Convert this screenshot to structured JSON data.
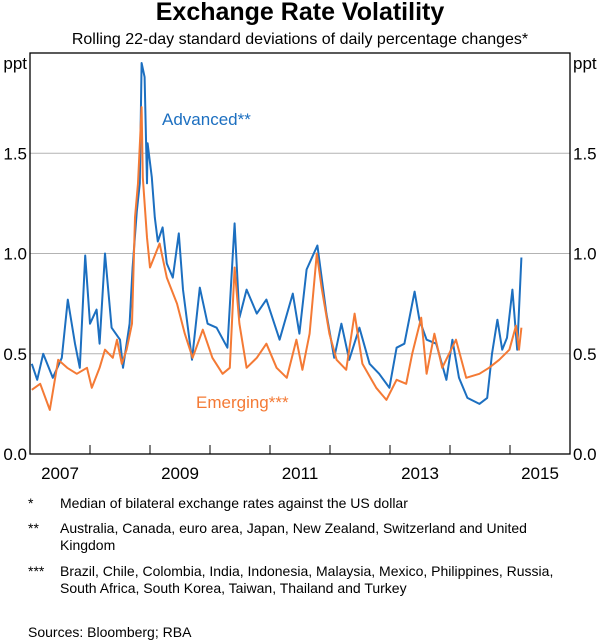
{
  "title": "Exchange Rate Volatility",
  "subtitle": "Rolling 22-day standard deviations of daily percentage changes*",
  "chart_data": {
    "type": "line",
    "title": "Exchange Rate Volatility",
    "subtitle": "Rolling 22-day standard deviations of daily percentage changes*",
    "ylabel_left": "ppt",
    "ylabel_right": "ppt",
    "ylim": [
      0,
      2.0
    ],
    "yticks": [
      0.0,
      0.5,
      1.0,
      1.5
    ],
    "ytick_labels": [
      "0.0",
      "0.5",
      "1.0",
      "1.5"
    ],
    "xlim": [
      2007,
      2016
    ],
    "xtick_labels": [
      "2007",
      "2009",
      "2011",
      "2013",
      "2015"
    ],
    "grid": "horizontal",
    "series": [
      {
        "name": "Advanced**",
        "color": "#1c6fc0",
        "points": [
          [
            2007.03,
            0.45
          ],
          [
            2007.12,
            0.37
          ],
          [
            2007.22,
            0.5
          ],
          [
            2007.38,
            0.38
          ],
          [
            2007.53,
            0.48
          ],
          [
            2007.63,
            0.77
          ],
          [
            2007.75,
            0.55
          ],
          [
            2007.83,
            0.43
          ],
          [
            2007.92,
            0.99
          ],
          [
            2008.0,
            0.65
          ],
          [
            2008.11,
            0.72
          ],
          [
            2008.16,
            0.55
          ],
          [
            2008.25,
            1.0
          ],
          [
            2008.36,
            0.63
          ],
          [
            2008.5,
            0.57
          ],
          [
            2008.55,
            0.43
          ],
          [
            2008.66,
            0.65
          ],
          [
            2008.71,
            0.93
          ],
          [
            2008.78,
            1.21
          ],
          [
            2008.83,
            1.35
          ],
          [
            2008.86,
            1.95
          ],
          [
            2008.91,
            1.88
          ],
          [
            2008.95,
            1.35
          ],
          [
            2008.96,
            1.55
          ],
          [
            2009.03,
            1.38
          ],
          [
            2009.08,
            1.18
          ],
          [
            2009.13,
            1.06
          ],
          [
            2009.21,
            1.13
          ],
          [
            2009.28,
            0.95
          ],
          [
            2009.38,
            0.88
          ],
          [
            2009.48,
            1.1
          ],
          [
            2009.55,
            0.82
          ],
          [
            2009.7,
            0.47
          ],
          [
            2009.83,
            0.83
          ],
          [
            2009.96,
            0.65
          ],
          [
            2010.11,
            0.63
          ],
          [
            2010.29,
            0.53
          ],
          [
            2010.41,
            1.15
          ],
          [
            2010.49,
            0.68
          ],
          [
            2010.61,
            0.82
          ],
          [
            2010.78,
            0.7
          ],
          [
            2010.94,
            0.77
          ],
          [
            2011.16,
            0.57
          ],
          [
            2011.38,
            0.8
          ],
          [
            2011.49,
            0.6
          ],
          [
            2011.61,
            0.92
          ],
          [
            2011.79,
            1.04
          ],
          [
            2011.94,
            0.7
          ],
          [
            2012.07,
            0.48
          ],
          [
            2012.19,
            0.65
          ],
          [
            2012.32,
            0.47
          ],
          [
            2012.49,
            0.63
          ],
          [
            2012.66,
            0.45
          ],
          [
            2012.82,
            0.4
          ],
          [
            2012.99,
            0.33
          ],
          [
            2013.11,
            0.53
          ],
          [
            2013.24,
            0.55
          ],
          [
            2013.41,
            0.81
          ],
          [
            2013.49,
            0.67
          ],
          [
            2013.61,
            0.57
          ],
          [
            2013.77,
            0.55
          ],
          [
            2013.94,
            0.37
          ],
          [
            2014.04,
            0.57
          ],
          [
            2014.15,
            0.38
          ],
          [
            2014.29,
            0.28
          ],
          [
            2014.49,
            0.25
          ],
          [
            2014.62,
            0.28
          ],
          [
            2014.7,
            0.5
          ],
          [
            2014.79,
            0.67
          ],
          [
            2014.87,
            0.52
          ],
          [
            2014.95,
            0.58
          ],
          [
            2015.04,
            0.82
          ],
          [
            2015.12,
            0.52
          ],
          [
            2015.19,
            0.98
          ]
        ]
      },
      {
        "name": "Emerging***",
        "color": "#f47a35",
        "points": [
          [
            2007.03,
            0.32
          ],
          [
            2007.17,
            0.35
          ],
          [
            2007.33,
            0.22
          ],
          [
            2007.47,
            0.47
          ],
          [
            2007.62,
            0.43
          ],
          [
            2007.78,
            0.4
          ],
          [
            2007.95,
            0.43
          ],
          [
            2008.03,
            0.33
          ],
          [
            2008.16,
            0.43
          ],
          [
            2008.25,
            0.52
          ],
          [
            2008.38,
            0.48
          ],
          [
            2008.45,
            0.57
          ],
          [
            2008.53,
            0.45
          ],
          [
            2008.61,
            0.52
          ],
          [
            2008.7,
            0.65
          ],
          [
            2008.75,
            1.18
          ],
          [
            2008.8,
            1.35
          ],
          [
            2008.86,
            1.73
          ],
          [
            2008.88,
            1.38
          ],
          [
            2008.95,
            1.08
          ],
          [
            2009.0,
            0.93
          ],
          [
            2009.16,
            1.05
          ],
          [
            2009.28,
            0.88
          ],
          [
            2009.45,
            0.75
          ],
          [
            2009.58,
            0.6
          ],
          [
            2009.71,
            0.48
          ],
          [
            2009.88,
            0.62
          ],
          [
            2010.04,
            0.48
          ],
          [
            2010.21,
            0.4
          ],
          [
            2010.33,
            0.43
          ],
          [
            2010.41,
            0.93
          ],
          [
            2010.49,
            0.65
          ],
          [
            2010.61,
            0.43
          ],
          [
            2010.78,
            0.48
          ],
          [
            2010.94,
            0.55
          ],
          [
            2011.11,
            0.43
          ],
          [
            2011.28,
            0.38
          ],
          [
            2011.44,
            0.57
          ],
          [
            2011.54,
            0.42
          ],
          [
            2011.66,
            0.6
          ],
          [
            2011.78,
            1.0
          ],
          [
            2011.86,
            0.83
          ],
          [
            2011.99,
            0.6
          ],
          [
            2012.11,
            0.47
          ],
          [
            2012.27,
            0.42
          ],
          [
            2012.41,
            0.7
          ],
          [
            2012.54,
            0.45
          ],
          [
            2012.77,
            0.33
          ],
          [
            2012.94,
            0.27
          ],
          [
            2013.11,
            0.37
          ],
          [
            2013.27,
            0.35
          ],
          [
            2013.37,
            0.5
          ],
          [
            2013.52,
            0.68
          ],
          [
            2013.61,
            0.4
          ],
          [
            2013.74,
            0.6
          ],
          [
            2013.87,
            0.43
          ],
          [
            2014.1,
            0.57
          ],
          [
            2014.27,
            0.38
          ],
          [
            2014.49,
            0.4
          ],
          [
            2014.65,
            0.43
          ],
          [
            2014.82,
            0.47
          ],
          [
            2014.99,
            0.52
          ],
          [
            2015.1,
            0.64
          ],
          [
            2015.15,
            0.52
          ],
          [
            2015.19,
            0.63
          ]
        ]
      }
    ]
  },
  "notes": [
    {
      "marker": "*",
      "text": "Median of bilateral exchange rates against the US dollar"
    },
    {
      "marker": "**",
      "text": "Australia, Canada, euro area, Japan, New Zealand, Switzerland and United Kingdom"
    },
    {
      "marker": "***",
      "text": "Brazil, Chile, Colombia, India, Indonesia, Malaysia, Mexico, Philippines, Russia, South Africa, South Korea, Taiwan, Thailand and Turkey"
    }
  ],
  "sources": "Sources:  Bloomberg; RBA"
}
